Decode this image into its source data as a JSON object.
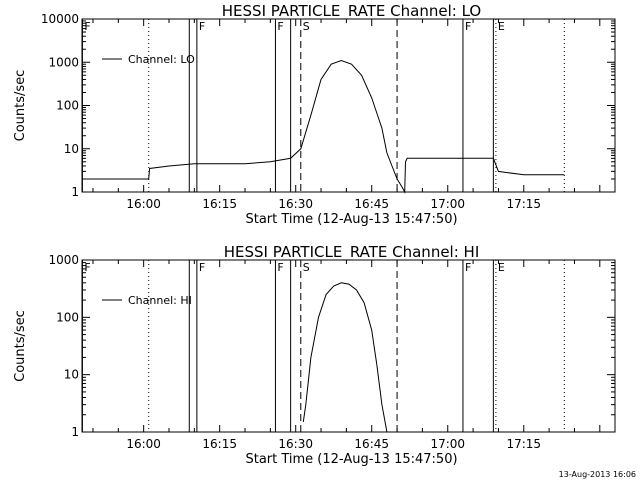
{
  "footer": {
    "timestamp": "13-Aug-2013 16:06"
  },
  "chart_data": [
    {
      "type": "line",
      "title": "HESSI PARTICLE_RATE Channel: LO",
      "xlabel": "Start Time (12-Aug-13 15:47:50)",
      "ylabel": "Counts/sec",
      "yscale": "log",
      "ylim": [
        1,
        10000
      ],
      "xlim": [
        "15:47:50",
        "17:33:00"
      ],
      "x_ticks": [
        "16:00",
        "16:15",
        "16:30",
        "16:45",
        "17:00",
        "17:15"
      ],
      "y_ticks": [
        "1",
        "10",
        "100",
        "1000",
        "10000"
      ],
      "legend": {
        "label": "Channel: LO",
        "position": "top-left"
      },
      "markers": [
        {
          "label": "F",
          "time": "15:47:55",
          "style": "solid"
        },
        {
          "label": "",
          "time": "16:01:00",
          "style": "dotted"
        },
        {
          "label": "",
          "time": "16:09:00",
          "style": "solid"
        },
        {
          "label": "F",
          "time": "16:10:30",
          "style": "solid"
        },
        {
          "label": "F",
          "time": "16:26:00",
          "style": "solid"
        },
        {
          "label": "",
          "time": "16:29:00",
          "style": "solid"
        },
        {
          "label": "S",
          "time": "16:31:00",
          "style": "dashed"
        },
        {
          "label": "",
          "time": "16:50:00",
          "style": "dashed"
        },
        {
          "label": "F",
          "time": "17:03:00",
          "style": "solid"
        },
        {
          "label": "",
          "time": "17:09:00",
          "style": "solid"
        },
        {
          "label": "E",
          "time": "17:09:30",
          "style": "dotted"
        },
        {
          "label": "",
          "time": "17:23:00",
          "style": "dotted"
        }
      ],
      "series": [
        {
          "x": [
            "15:47:50",
            "15:52:00",
            "15:56:00",
            "16:01:00",
            "16:01:10",
            "16:05:00",
            "16:10:00",
            "16:15:00",
            "16:20:00",
            "16:25:00",
            "16:29:00",
            "16:31:00",
            "16:33:00",
            "16:35:00",
            "16:37:00",
            "16:39:00",
            "16:41:00",
            "16:43:00",
            "16:45:00",
            "16:47:00",
            "16:48:00",
            "16:49:00",
            "16:50:00",
            "16:51:00",
            "16:51:30",
            "16:51:40",
            "16:52:00",
            "16:55:00",
            "17:00:00",
            "17:05:00",
            "17:09:00",
            "17:10:00",
            "17:15:00",
            "17:20:00",
            "17:23:00"
          ],
          "y": [
            2,
            2,
            2,
            2,
            3.5,
            4,
            4.5,
            4.5,
            4.5,
            5,
            6,
            10,
            60,
            400,
            900,
            1100,
            900,
            500,
            150,
            30,
            8,
            4,
            2,
            1.3,
            1,
            5,
            6,
            6,
            6,
            6,
            6,
            3,
            2.5,
            2.5,
            2.5
          ]
        }
      ]
    },
    {
      "type": "line",
      "title": "HESSI PARTICLE_RATE Channel: HI",
      "xlabel": "Start Time (12-Aug-13 15:47:50)",
      "ylabel": "Counts/sec",
      "yscale": "log",
      "ylim": [
        1,
        1000
      ],
      "xlim": [
        "15:47:50",
        "17:33:00"
      ],
      "x_ticks": [
        "16:00",
        "16:15",
        "16:30",
        "16:45",
        "17:00",
        "17:15"
      ],
      "y_ticks": [
        "1",
        "10",
        "100",
        "1000"
      ],
      "legend": {
        "label": "Channel: HI",
        "position": "top-left"
      },
      "markers": [
        {
          "label": "F",
          "time": "15:47:55",
          "style": "solid"
        },
        {
          "label": "",
          "time": "16:01:00",
          "style": "dotted"
        },
        {
          "label": "",
          "time": "16:09:00",
          "style": "solid"
        },
        {
          "label": "F",
          "time": "16:10:30",
          "style": "solid"
        },
        {
          "label": "F",
          "time": "16:26:00",
          "style": "solid"
        },
        {
          "label": "",
          "time": "16:29:00",
          "style": "solid"
        },
        {
          "label": "S",
          "time": "16:31:00",
          "style": "dashed"
        },
        {
          "label": "",
          "time": "16:50:00",
          "style": "dashed"
        },
        {
          "label": "F",
          "time": "17:03:00",
          "style": "solid"
        },
        {
          "label": "",
          "time": "17:09:00",
          "style": "solid"
        },
        {
          "label": "E",
          "time": "17:09:30",
          "style": "dotted"
        },
        {
          "label": "",
          "time": "17:23:00",
          "style": "dotted"
        }
      ],
      "series": [
        {
          "x": [
            "16:31:30",
            "16:32:00",
            "16:33:00",
            "16:34:30",
            "16:36:00",
            "16:37:30",
            "16:39:00",
            "16:40:30",
            "16:42:00",
            "16:43:30",
            "16:45:00",
            "16:46:00",
            "16:47:00",
            "16:48:00"
          ],
          "y": [
            1.5,
            3,
            20,
            100,
            250,
            350,
            400,
            380,
            300,
            180,
            60,
            15,
            3,
            1
          ]
        }
      ]
    }
  ]
}
